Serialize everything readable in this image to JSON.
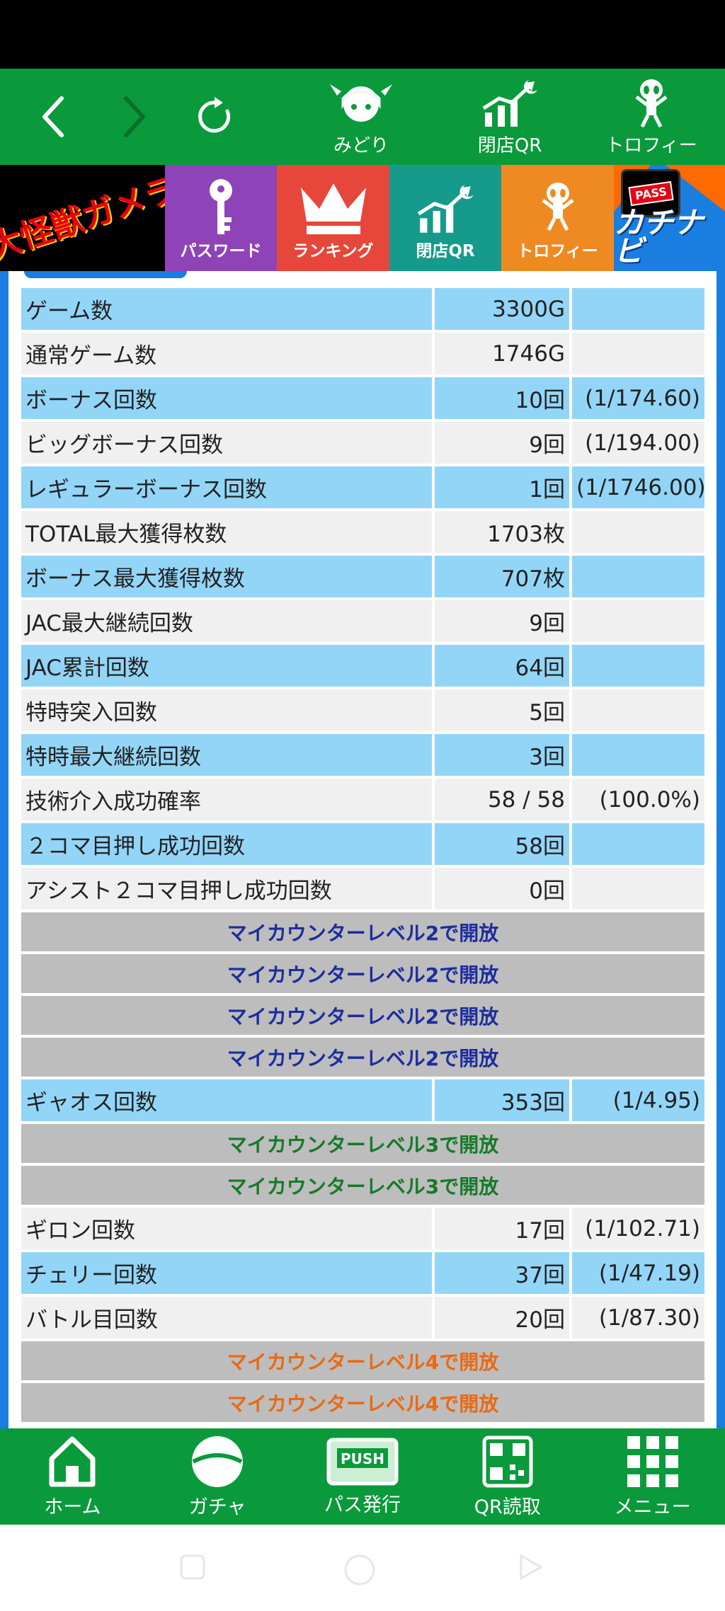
{
  "top_nav": {
    "back_icon": "chevron-left-icon",
    "forward_icon": "chevron-right-icon",
    "reload_icon": "reload-icon",
    "items": [
      {
        "label": "みどり",
        "icon": "character-icon"
      },
      {
        "label": "閉店QR",
        "icon": "chart-moon-icon"
      },
      {
        "label": "トロフィー",
        "icon": "alien-trophy-icon"
      }
    ]
  },
  "banner": {
    "logo_text": "大怪獣ガメラ",
    "tiles": [
      {
        "label": "パスワード",
        "icon": "key-icon"
      },
      {
        "label": "ランキング",
        "icon": "crown-icon"
      },
      {
        "label": "閉店QR",
        "icon": "chart-moon-icon"
      },
      {
        "label": "トロフィー",
        "icon": "alien-trophy-icon"
      }
    ],
    "pass_text": "PASS",
    "kachi_text": "カチナビ"
  },
  "stats": [
    {
      "label": "ゲーム数",
      "value": "3300G",
      "ratio": ""
    },
    {
      "label": "通常ゲーム数",
      "value": "1746G",
      "ratio": ""
    },
    {
      "label": "ボーナス回数",
      "value": "10回",
      "ratio": "(1/174.60)"
    },
    {
      "label": "ビッグボーナス回数",
      "value": "9回",
      "ratio": "(1/194.00)"
    },
    {
      "label": "レギュラーボーナス回数",
      "value": "1回",
      "ratio": "(1/1746.00)"
    },
    {
      "label": "TOTAL最大獲得枚数",
      "value": "1703枚",
      "ratio": ""
    },
    {
      "label": "ボーナス最大獲得枚数",
      "value": "707枚",
      "ratio": ""
    },
    {
      "label": "JAC最大継続回数",
      "value": "9回",
      "ratio": ""
    },
    {
      "label": "JAC累計回数",
      "value": "64回",
      "ratio": ""
    },
    {
      "label": "特時突入回数",
      "value": "5回",
      "ratio": ""
    },
    {
      "label": "特時最大継続回数",
      "value": "3回",
      "ratio": ""
    },
    {
      "label": "技術介入成功確率",
      "value": "58 / 58",
      "ratio": "(100.0%)"
    },
    {
      "label": "２コマ目押し成功回数",
      "value": "58回",
      "ratio": ""
    },
    {
      "label": "アシスト２コマ目押し成功回数",
      "value": "0回",
      "ratio": ""
    }
  ],
  "locked_lv2": [
    "マイカウンターレベル2で開放",
    "マイカウンターレベル2で開放",
    "マイカウンターレベル2で開放",
    "マイカウンターレベル2で開放"
  ],
  "stat_gyaos": {
    "label": "ギャオス回数",
    "value": "353回",
    "ratio": "(1/4.95)"
  },
  "locked_lv3": [
    "マイカウンターレベル3で開放",
    "マイカウンターレベル3で開放"
  ],
  "stats2": [
    {
      "label": "ギロン回数",
      "value": "17回",
      "ratio": "(1/102.71)"
    },
    {
      "label": "チェリー回数",
      "value": "37回",
      "ratio": "(1/47.19)"
    },
    {
      "label": "バトル目回数",
      "value": "20回",
      "ratio": "(1/87.30)"
    }
  ],
  "locked_lv4": [
    "マイカウンターレベル4で開放",
    "マイカウンターレベル4で開放"
  ],
  "bottom_nav": [
    {
      "label": "ホーム",
      "icon": "home-icon"
    },
    {
      "label": "ガチャ",
      "icon": "gacha-icon"
    },
    {
      "label": "パス発行",
      "icon": "push-icon",
      "badge": "PUSH"
    },
    {
      "label": "QR読取",
      "icon": "qr-code-icon"
    },
    {
      "label": "メニュー",
      "icon": "grid-menu-icon"
    }
  ]
}
